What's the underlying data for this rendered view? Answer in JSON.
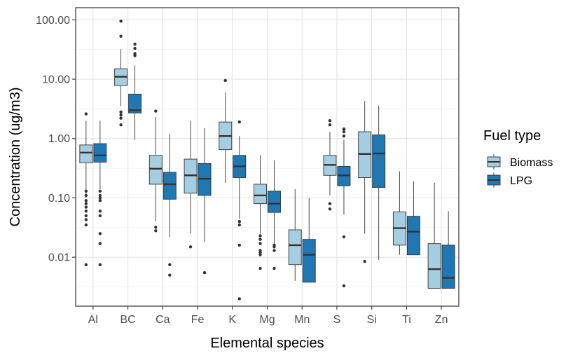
{
  "chart_data": {
    "type": "boxplot",
    "xlabel": "Elemental species",
    "ylabel": "Concentration (ug/m3)",
    "yscale": "log10",
    "ylim": [
      0.0015,
      160
    ],
    "ytick_values": [
      0.01,
      0.1,
      1,
      10,
      100
    ],
    "ytick_labels": [
      "0.01",
      "0.10",
      "1.00",
      "10.00",
      "100.00"
    ],
    "grid": true,
    "legend": {
      "title": "Fuel type",
      "placement": "right"
    },
    "categories": [
      "Al",
      "BC",
      "Ca",
      "Fe",
      "K",
      "Mg",
      "Mn",
      "S",
      "Si",
      "Ti",
      "Zn"
    ],
    "series": [
      {
        "name": "Biomass",
        "color": "#a6cee3",
        "boxes": [
          {
            "low": 0.1,
            "q1": 0.39,
            "median": 0.58,
            "q3": 0.78,
            "high": 2.0,
            "outliers": [
              2.6,
              0.13,
              0.11,
              0.09,
              0.08,
              0.07,
              0.06,
              0.05,
              0.043,
              0.035,
              0.0075
            ]
          },
          {
            "low": 3.5,
            "q1": 7.8,
            "median": 11.0,
            "q3": 15.0,
            "high": 32,
            "outliers": [
              95,
              53,
              2.8,
              2.5,
              2.2,
              1.7
            ]
          },
          {
            "low": 0.04,
            "q1": 0.17,
            "median": 0.31,
            "q3": 0.52,
            "high": 2.3,
            "outliers": [
              2.9,
              0.032,
              0.028
            ]
          },
          {
            "low": 0.025,
            "q1": 0.12,
            "median": 0.24,
            "q3": 0.45,
            "high": 2.0,
            "outliers": [
              0.015
            ]
          },
          {
            "low": 0.18,
            "q1": 0.65,
            "median": 1.1,
            "q3": 1.9,
            "high": 6.0,
            "outliers": [
              9.5
            ]
          },
          {
            "low": 0.025,
            "q1": 0.08,
            "median": 0.11,
            "q3": 0.17,
            "high": 0.52,
            "outliers": [
              0.023,
              0.02,
              0.017,
              0.013,
              0.012,
              0.011,
              0.0065
            ]
          },
          {
            "low": 0.004,
            "q1": 0.0075,
            "median": 0.016,
            "q3": 0.029,
            "high": 0.14,
            "outliers": []
          },
          {
            "low": 0.11,
            "q1": 0.24,
            "median": 0.36,
            "q3": 0.52,
            "high": 1.3,
            "outliers": [
              2.0,
              1.7,
              0.08,
              0.065
            ]
          },
          {
            "low": 0.025,
            "q1": 0.22,
            "median": 0.55,
            "q3": 1.3,
            "high": 4.3,
            "outliers": [
              0.0085
            ]
          },
          {
            "low": 0.011,
            "q1": 0.016,
            "median": 0.031,
            "q3": 0.058,
            "high": 0.28,
            "outliers": []
          },
          {
            "low": 0.003,
            "q1": 0.003,
            "median": 0.0063,
            "q3": 0.017,
            "high": 0.18,
            "outliers": []
          }
        ]
      },
      {
        "name": "LPG",
        "color": "#1f78b4",
        "boxes": [
          {
            "low": 0.14,
            "q1": 0.4,
            "median": 0.52,
            "q3": 0.82,
            "high": 2.0,
            "outliers": [
              0.13,
              0.11,
              0.1,
              0.09,
              0.06,
              0.05,
              0.025,
              0.017,
              0.0075
            ]
          },
          {
            "low": 0.95,
            "q1": 2.7,
            "median": 3.0,
            "q3": 5.6,
            "high": 17,
            "outliers": [
              39,
              33,
              27,
              25
            ]
          },
          {
            "low": 0.022,
            "q1": 0.095,
            "median": 0.17,
            "q3": 0.27,
            "high": 1.2,
            "outliers": [
              0.0075,
              0.005
            ]
          },
          {
            "low": 0.018,
            "q1": 0.11,
            "median": 0.21,
            "q3": 0.38,
            "high": 1.5,
            "outliers": [
              0.0055
            ]
          },
          {
            "low": 0.045,
            "q1": 0.22,
            "median": 0.34,
            "q3": 0.52,
            "high": 1.1,
            "outliers": [
              1.9,
              0.04,
              0.035,
              0.016,
              0.002
            ]
          },
          {
            "low": 0.016,
            "q1": 0.057,
            "median": 0.08,
            "q3": 0.13,
            "high": 0.43,
            "outliers": [
              0.016,
              0.015,
              0.013,
              0.0065
            ]
          },
          {
            "low": 0.0038,
            "q1": 0.0038,
            "median": 0.011,
            "q3": 0.02,
            "high": 0.1,
            "outliers": []
          },
          {
            "low": 0.052,
            "q1": 0.16,
            "median": 0.24,
            "q3": 0.34,
            "high": 0.95,
            "outliers": [
              1.45,
              1.3,
              1.1,
              0.022,
              0.0033
            ]
          },
          {
            "low": 0.009,
            "q1": 0.15,
            "median": 0.56,
            "q3": 1.15,
            "high": 3.6,
            "outliers": []
          },
          {
            "low": 0.011,
            "q1": 0.011,
            "median": 0.027,
            "q3": 0.049,
            "high": 0.19,
            "outliers": []
          },
          {
            "low": 0.003,
            "q1": 0.003,
            "median": 0.0045,
            "q3": 0.016,
            "high": 0.06,
            "outliers": []
          }
        ]
      }
    ]
  }
}
